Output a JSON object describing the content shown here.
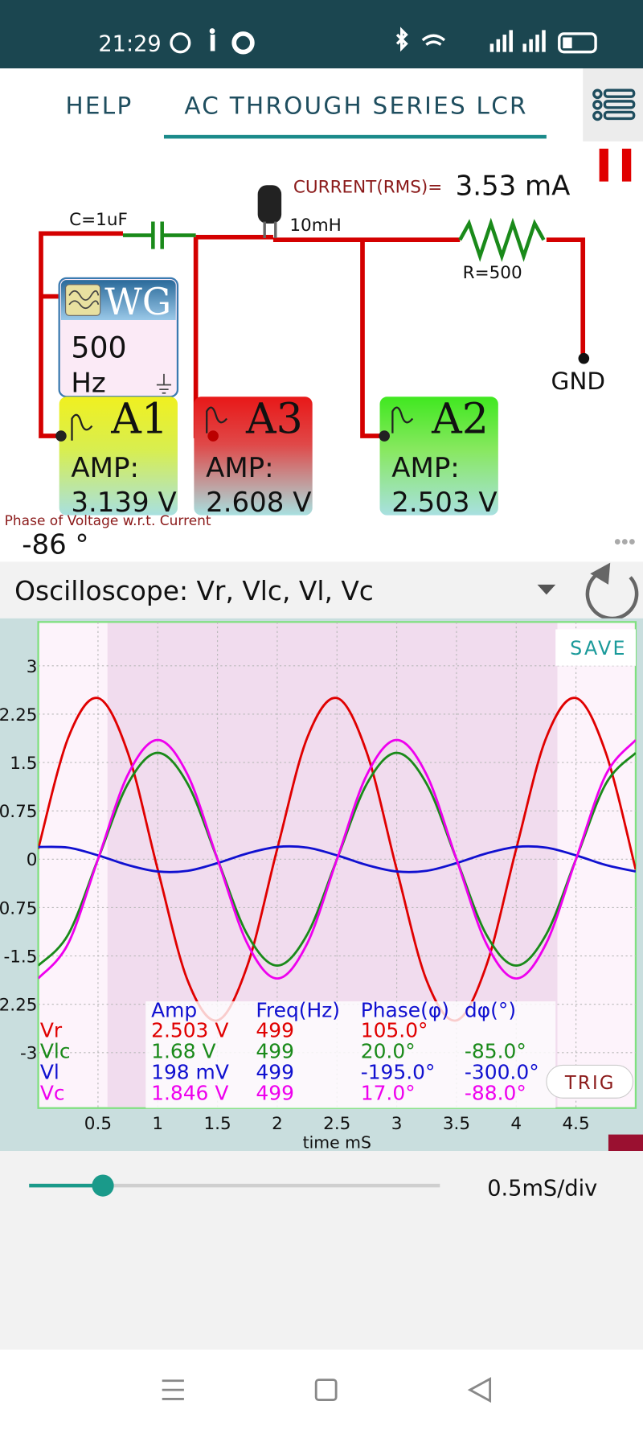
{
  "status_bar": {
    "time": "21:29"
  },
  "tabs": [
    "HELP",
    "AC THROUGH SERIES LCR"
  ],
  "circuit": {
    "current_label": "CURRENT(RMS)=",
    "current_value": "3.53 mA",
    "capacitor": "C=1uF",
    "inductor": "10mH",
    "resistor": "R=500",
    "ground": "GND",
    "generator": {
      "name": "WG",
      "value": "500",
      "unit": "Hz"
    },
    "meters": [
      {
        "name": "A1",
        "label": "AMP:",
        "value": "3.139 V"
      },
      {
        "name": "A3",
        "label": "AMP:",
        "value": "2.608 V"
      },
      {
        "name": "A2",
        "label": "AMP:",
        "value": "2.503 V"
      }
    ],
    "phase_label": "Phase of Voltage w.r.t. Current",
    "phase_value": "-86 °"
  },
  "oscilloscope": {
    "title": "Oscilloscope: Vr, Vlc, Vl, Vc",
    "save": "SAVE",
    "trig": "TRIG",
    "table_header": [
      "Amp",
      "Freq(Hz)",
      "Phase(φ)",
      "dφ(°)"
    ],
    "chart_data": {
      "type": "line",
      "x_label": "time mS",
      "x": [
        0,
        0.25,
        0.5,
        0.75,
        1,
        1.25,
        1.5,
        1.75,
        2,
        2.25,
        2.5,
        2.75,
        3,
        3.25,
        3.5,
        3.75,
        4,
        4.25,
        4.5,
        4.75,
        5
      ],
      "xlim": [
        0,
        5
      ],
      "xticks": [
        0.5,
        1,
        1.5,
        2,
        2.5,
        3,
        3.5,
        4,
        4.5
      ],
      "ylim": [
        -3.86,
        3.68
      ],
      "yticks": [
        3,
        2.25,
        1.5,
        0.75,
        0,
        -0.75,
        -1.5,
        -2.25,
        -3
      ],
      "grid": true,
      "series": [
        {
          "name": "Vr",
          "color": "#e00000",
          "amp": "2.503 V",
          "freq": "499",
          "phase": "105.0°",
          "values": [
            0.16,
            1.88,
            2.5,
            1.65,
            -0.16,
            -1.88,
            -2.5,
            -1.65,
            0.16,
            1.88,
            2.5,
            1.65,
            -0.16,
            -1.88,
            -2.5,
            -1.65,
            0.16,
            1.88,
            2.5,
            1.65,
            -0.16
          ]
        },
        {
          "name": "Vlc",
          "color": "#1a8a1a",
          "amp": "1.68 V",
          "freq": "499",
          "phase": "20.0°",
          "dphi": "-85.0°",
          "values": [
            -1.65,
            -1.17,
            0,
            1.17,
            1.65,
            1.17,
            0,
            -1.17,
            -1.65,
            -1.17,
            0,
            1.17,
            1.65,
            1.17,
            0,
            -1.17,
            -1.65,
            -1.17,
            0,
            1.17,
            1.65
          ]
        },
        {
          "name": "Vl",
          "color": "#1010d0",
          "amp": "198 mV",
          "freq": "499",
          "phase": "-195.0°",
          "dphi": "-300.0°",
          "values": [
            0.19,
            0.18,
            0.06,
            -0.09,
            -0.19,
            -0.18,
            -0.06,
            0.09,
            0.19,
            0.18,
            0.06,
            -0.09,
            -0.19,
            -0.18,
            -0.06,
            0.09,
            0.19,
            0.18,
            0.06,
            -0.09,
            -0.19
          ]
        },
        {
          "name": "Vc",
          "color": "#ee00ee",
          "amp": "1.846 V",
          "freq": "499",
          "phase": "17.0°",
          "dphi": "-88.0°",
          "values": [
            -1.85,
            -1.31,
            0,
            1.31,
            1.85,
            1.31,
            0,
            -1.31,
            -1.85,
            -1.31,
            0,
            1.31,
            1.85,
            1.31,
            0,
            -1.31,
            -1.85,
            -1.31,
            0,
            1.31,
            1.85
          ]
        }
      ]
    }
  },
  "timebase": "0.5mS/div"
}
